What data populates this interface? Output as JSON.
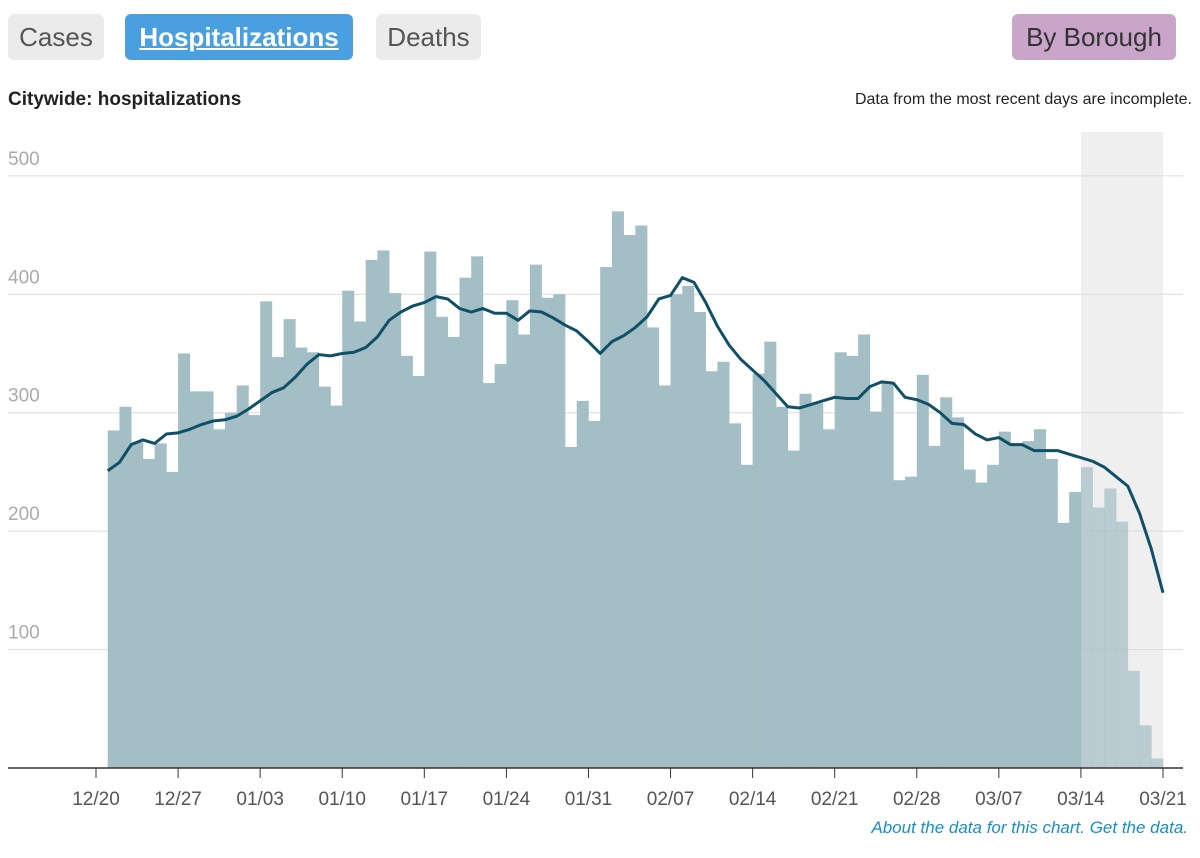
{
  "tabs": [
    "Cases",
    "Hospitalizations",
    "Deaths"
  ],
  "active_tab": 1,
  "borough_button": "By Borough",
  "note": "Data from the most recent days are incomplete.",
  "footer_links": [
    "About the data for this chart.",
    "Get the data."
  ],
  "chart_data": {
    "type": "bar",
    "title": "Citywide: hospitalizations",
    "categories": [
      "12/20",
      null,
      null,
      null,
      null,
      null,
      null,
      "12/27",
      null,
      null,
      null,
      null,
      null,
      null,
      "01/03",
      null,
      null,
      null,
      null,
      null,
      null,
      "01/10",
      null,
      null,
      null,
      null,
      null,
      null,
      "01/17",
      null,
      null,
      null,
      null,
      null,
      null,
      "01/24",
      null,
      null,
      null,
      null,
      null,
      null,
      "01/31",
      null,
      null,
      null,
      null,
      null,
      null,
      "02/07",
      null,
      null,
      null,
      null,
      null,
      null,
      "02/14",
      null,
      null,
      null,
      null,
      null,
      null,
      "02/21",
      null,
      null,
      null,
      null,
      null,
      null,
      "02/28",
      null,
      null,
      null,
      null,
      null,
      null,
      "03/07",
      null,
      null,
      null,
      null,
      null,
      null,
      "03/14",
      null,
      null,
      null,
      null,
      null,
      null,
      "03/21"
    ],
    "series": [
      {
        "type": "bar",
        "color": "#a3bec4",
        "values": [
          null,
          285,
          305,
          275,
          261,
          274,
          250,
          350,
          318,
          318,
          286,
          300,
          323,
          298,
          394,
          347,
          379,
          355,
          351,
          322,
          306,
          403,
          377,
          429,
          437,
          401,
          348,
          331,
          436,
          381,
          364,
          414,
          432,
          325,
          341,
          395,
          366,
          425,
          397,
          400,
          271,
          310,
          293,
          423,
          470,
          450,
          458,
          372,
          323,
          400,
          407,
          385,
          335,
          343,
          291,
          256,
          333,
          360,
          305,
          268,
          316,
          308,
          286,
          351,
          348,
          366,
          301,
          326,
          243,
          246,
          332,
          272,
          313,
          296,
          252,
          241,
          256,
          284,
          273,
          276,
          286,
          261,
          207,
          233,
          254,
          220,
          236,
          208,
          82,
          36,
          8,
          null
        ]
      },
      {
        "type": "line",
        "color": "#0f5068",
        "values": [
          null,
          251,
          258,
          273,
          277,
          274,
          282,
          283,
          286,
          290,
          293,
          294,
          297,
          303,
          310,
          317,
          321,
          330,
          341,
          349,
          348,
          350,
          351,
          355,
          364,
          378,
          385,
          390,
          393,
          398,
          396,
          388,
          385,
          388,
          384,
          384,
          378,
          386,
          385,
          380,
          374,
          369,
          360,
          350,
          360,
          365,
          372,
          381,
          396,
          399,
          414,
          410,
          393,
          373,
          357,
          345,
          336,
          327,
          316,
          305,
          304,
          307,
          310,
          313,
          312,
          312,
          322,
          326,
          325,
          313,
          311,
          307,
          300,
          291,
          290,
          282,
          277,
          279,
          273,
          273,
          268,
          268,
          268,
          265,
          262,
          259,
          254,
          246,
          238,
          215,
          185,
          148
        ]
      }
    ],
    "ylim": [
      0,
      537
    ],
    "yticks": [
      100,
      200,
      300,
      400,
      500
    ],
    "grid": true,
    "shade": [
      "03/14",
      "03/21"
    ],
    "shade_color": "#efefef"
  }
}
